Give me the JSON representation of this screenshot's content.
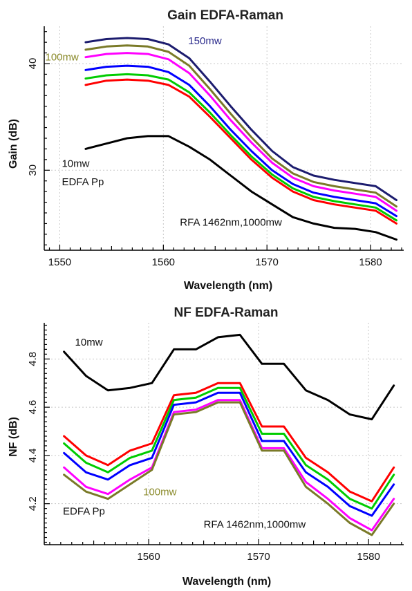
{
  "chart_data": [
    {
      "type": "line",
      "title": "Gain EDFA-Raman",
      "xlabel": "Wavelength (nm)",
      "ylabel": "Gain (dB)",
      "xlim": [
        1548.5,
        1583.2
      ],
      "ylim": [
        22.5,
        43.5
      ],
      "xticks": [
        1550,
        1560,
        1570,
        1580
      ],
      "xtick_labels": [
        "1550",
        "1560",
        "1570",
        "1580"
      ],
      "yticks": [
        30,
        40
      ],
      "ytick_labels": [
        "30",
        "40"
      ],
      "grid": true,
      "annotations": [
        {
          "text": "150mw",
          "color": "#2b2b8c",
          "x": 1562.4,
          "y": 41.8
        },
        {
          "text": "100mw",
          "color": "#8a8a2a",
          "x": 1548.6,
          "y": 40.3
        },
        {
          "text": "10mw",
          "color": "#111111",
          "x": 1550.2,
          "y": 30.3
        },
        {
          "text": "EDFA Pp",
          "color": "#111111",
          "x": 1550.2,
          "y": 28.6
        },
        {
          "text": "RFA 1462nm,1000mw",
          "color": "#111111",
          "x": 1561.6,
          "y": 24.8
        }
      ],
      "series": [
        {
          "color": "#000000",
          "x": [
            1552.5,
            1554.5,
            1556.5,
            1558.5,
            1560.5,
            1562.5,
            1564.5,
            1566.5,
            1568.5,
            1570.5,
            1572.5,
            1574.5,
            1576.5,
            1578.5,
            1580.5,
            1582.5
          ],
          "values": [
            32.0,
            32.5,
            33.0,
            33.2,
            33.2,
            32.2,
            31.0,
            29.5,
            28.0,
            26.8,
            25.6,
            25.0,
            24.6,
            24.5,
            24.2,
            23.5
          ]
        },
        {
          "color": "#ff0000",
          "x": [
            1552.5,
            1554.5,
            1556.5,
            1558.5,
            1560.5,
            1562.5,
            1564.5,
            1566.5,
            1568.5,
            1570.5,
            1572.5,
            1574.5,
            1576.5,
            1578.5,
            1580.5,
            1582.5
          ],
          "values": [
            38.0,
            38.4,
            38.5,
            38.4,
            38.0,
            36.9,
            35.0,
            33.0,
            31.0,
            29.3,
            28.0,
            27.2,
            26.8,
            26.5,
            26.2,
            25.0
          ]
        },
        {
          "color": "#00cc00",
          "x": [
            1552.5,
            1554.5,
            1556.5,
            1558.5,
            1560.5,
            1562.5,
            1564.5,
            1566.5,
            1568.5,
            1570.5,
            1572.5,
            1574.5,
            1576.5,
            1578.5,
            1580.5,
            1582.5
          ],
          "values": [
            38.6,
            38.9,
            39.0,
            38.9,
            38.5,
            37.3,
            35.4,
            33.3,
            31.3,
            29.6,
            28.3,
            27.5,
            27.1,
            26.8,
            26.5,
            25.3
          ]
        },
        {
          "color": "#0000ff",
          "x": [
            1552.5,
            1554.5,
            1556.5,
            1558.5,
            1560.5,
            1562.5,
            1564.5,
            1566.5,
            1568.5,
            1570.5,
            1572.5,
            1574.5,
            1576.5,
            1578.5,
            1580.5,
            1582.5
          ],
          "values": [
            39.4,
            39.7,
            39.8,
            39.7,
            39.2,
            38.0,
            36.0,
            33.8,
            31.8,
            30.0,
            28.7,
            27.9,
            27.5,
            27.2,
            26.9,
            25.7
          ]
        },
        {
          "color": "#ff00ff",
          "x": [
            1552.5,
            1554.5,
            1556.5,
            1558.5,
            1560.5,
            1562.5,
            1564.5,
            1566.5,
            1568.5,
            1570.5,
            1572.5,
            1574.5,
            1576.5,
            1578.5,
            1580.5,
            1582.5
          ],
          "values": [
            40.6,
            40.9,
            41.0,
            40.9,
            40.4,
            39.1,
            37.0,
            34.7,
            32.6,
            30.7,
            29.3,
            28.5,
            28.1,
            27.8,
            27.5,
            26.2
          ]
        },
        {
          "color": "#7a7a28",
          "x": [
            1552.5,
            1554.5,
            1556.5,
            1558.5,
            1560.5,
            1562.5,
            1564.5,
            1566.5,
            1568.5,
            1570.5,
            1572.5,
            1574.5,
            1576.5,
            1578.5,
            1580.5,
            1582.5
          ],
          "values": [
            41.3,
            41.6,
            41.7,
            41.6,
            41.1,
            39.8,
            37.6,
            35.3,
            33.1,
            31.1,
            29.7,
            28.9,
            28.5,
            28.2,
            27.9,
            26.6
          ]
        },
        {
          "color": "#1c1c6e",
          "x": [
            1552.5,
            1554.5,
            1556.5,
            1558.5,
            1560.5,
            1562.5,
            1564.5,
            1566.5,
            1568.5,
            1570.5,
            1572.5,
            1574.5,
            1576.5,
            1578.5,
            1580.5,
            1582.5
          ],
          "values": [
            42.0,
            42.3,
            42.4,
            42.3,
            41.8,
            40.5,
            38.3,
            36.0,
            33.8,
            31.8,
            30.3,
            29.5,
            29.1,
            28.8,
            28.5,
            27.2
          ]
        }
      ]
    },
    {
      "type": "line",
      "title": "NF EDFA-Raman",
      "xlabel": "Wavelength (nm)",
      "ylabel": "NF (dB)",
      "xlim": [
        1550.5,
        1583.2
      ],
      "ylim": [
        4.03,
        4.95
      ],
      "xticks": [
        1560,
        1570,
        1580
      ],
      "xtick_labels": [
        "1560",
        "1570",
        "1580"
      ],
      "yticks": [
        4.2,
        4.4,
        4.6,
        4.8
      ],
      "ytick_labels": [
        "4.2",
        "4.4",
        "4.6",
        "4.8"
      ],
      "grid": true,
      "annotations": [
        {
          "text": "10mw",
          "color": "#111111",
          "x": 1553.3,
          "y": 4.855
        },
        {
          "text": "100mw",
          "color": "#8a8a2a",
          "x": 1559.5,
          "y": 4.235
        },
        {
          "text": "EDFA Pp",
          "color": "#111111",
          "x": 1552.2,
          "y": 4.155
        },
        {
          "text": "RFA 1462nm,1000mw",
          "color": "#111111",
          "x": 1565.0,
          "y": 4.1
        }
      ],
      "series": [
        {
          "color": "#000000",
          "x": [
            1552.3,
            1554.3,
            1556.3,
            1558.3,
            1560.3,
            1562.3,
            1564.3,
            1566.3,
            1568.3,
            1570.3,
            1572.3,
            1574.3,
            1576.3,
            1578.3,
            1580.3,
            1582.3
          ],
          "values": [
            4.83,
            4.73,
            4.67,
            4.68,
            4.7,
            4.84,
            4.84,
            4.89,
            4.9,
            4.78,
            4.78,
            4.67,
            4.63,
            4.57,
            4.55,
            4.69
          ]
        },
        {
          "color": "#ff0000",
          "x": [
            1552.3,
            1554.3,
            1556.3,
            1558.3,
            1560.3,
            1562.3,
            1564.3,
            1566.3,
            1568.3,
            1570.3,
            1572.3,
            1574.3,
            1576.3,
            1578.3,
            1580.3,
            1582.3
          ],
          "values": [
            4.48,
            4.4,
            4.36,
            4.42,
            4.45,
            4.65,
            4.66,
            4.7,
            4.7,
            4.52,
            4.52,
            4.39,
            4.33,
            4.25,
            4.21,
            4.35
          ]
        },
        {
          "color": "#00cc00",
          "x": [
            1552.3,
            1554.3,
            1556.3,
            1558.3,
            1560.3,
            1562.3,
            1564.3,
            1566.3,
            1568.3,
            1570.3,
            1572.3,
            1574.3,
            1576.3,
            1578.3,
            1580.3,
            1582.3
          ],
          "values": [
            4.45,
            4.37,
            4.33,
            4.39,
            4.42,
            4.63,
            4.64,
            4.68,
            4.68,
            4.49,
            4.49,
            4.36,
            4.3,
            4.22,
            4.18,
            4.32
          ]
        },
        {
          "color": "#0000ff",
          "x": [
            1552.3,
            1554.3,
            1556.3,
            1558.3,
            1560.3,
            1562.3,
            1564.3,
            1566.3,
            1568.3,
            1570.3,
            1572.3,
            1574.3,
            1576.3,
            1578.3,
            1580.3,
            1582.3
          ],
          "values": [
            4.41,
            4.33,
            4.3,
            4.36,
            4.39,
            4.61,
            4.62,
            4.66,
            4.66,
            4.46,
            4.46,
            4.33,
            4.27,
            4.19,
            4.15,
            4.28
          ]
        },
        {
          "color": "#ff00ff",
          "x": [
            1552.3,
            1554.3,
            1556.3,
            1558.3,
            1560.3,
            1562.3,
            1564.3,
            1566.3,
            1568.3,
            1570.3,
            1572.3,
            1574.3,
            1576.3,
            1578.3,
            1580.3,
            1582.3
          ],
          "values": [
            4.35,
            4.27,
            4.24,
            4.3,
            4.35,
            4.58,
            4.59,
            4.63,
            4.63,
            4.43,
            4.43,
            4.29,
            4.22,
            4.14,
            4.09,
            4.22
          ]
        },
        {
          "color": "#7a7a28",
          "x": [
            1552.3,
            1554.3,
            1556.3,
            1558.3,
            1560.3,
            1562.3,
            1564.3,
            1566.3,
            1568.3,
            1570.3,
            1572.3,
            1574.3,
            1576.3,
            1578.3,
            1580.3,
            1582.3
          ],
          "values": [
            4.32,
            4.25,
            4.22,
            4.28,
            4.34,
            4.57,
            4.58,
            4.62,
            4.62,
            4.42,
            4.42,
            4.27,
            4.2,
            4.12,
            4.07,
            4.2
          ]
        }
      ]
    }
  ]
}
